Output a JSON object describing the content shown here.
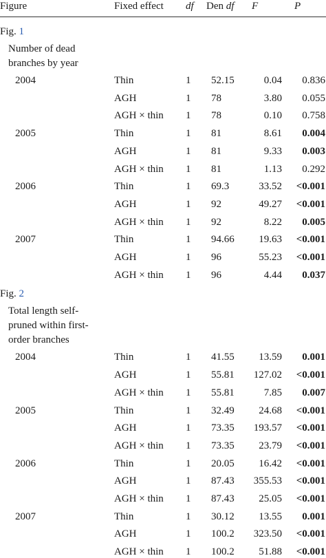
{
  "header": {
    "figure": "Figure",
    "fixed_effect": "Fixed effect",
    "df": "df",
    "den_df_prefix": "Den ",
    "den_df_italic": "df",
    "f": "F",
    "p": "P"
  },
  "sections": [
    {
      "fig_prefix": "Fig. ",
      "fig_num": "1",
      "title_lines": [
        "Number of dead",
        "branches by year"
      ],
      "years": [
        {
          "year": "2004",
          "rows": [
            {
              "effect": "Thin",
              "df": "1",
              "den": "52.15",
              "f": "0.04",
              "p": "0.836",
              "bold": false
            },
            {
              "effect": "AGH",
              "df": "1",
              "den": "78",
              "f": "3.80",
              "p": "0.055",
              "bold": false
            },
            {
              "effect": "AGH × thin",
              "df": "1",
              "den": "78",
              "f": "0.10",
              "p": "0.758",
              "bold": false
            }
          ]
        },
        {
          "year": "2005",
          "rows": [
            {
              "effect": "Thin",
              "df": "1",
              "den": "81",
              "f": "8.61",
              "p": "0.004",
              "bold": true
            },
            {
              "effect": "AGH",
              "df": "1",
              "den": "81",
              "f": "9.33",
              "p": "0.003",
              "bold": true
            },
            {
              "effect": "AGH × thin",
              "df": "1",
              "den": "81",
              "f": "1.13",
              "p": "0.292",
              "bold": false
            }
          ]
        },
        {
          "year": "2006",
          "rows": [
            {
              "effect": "Thin",
              "df": "1",
              "den": "69.3",
              "f": "33.52",
              "p": "<0.001",
              "bold": true
            },
            {
              "effect": "AGH",
              "df": "1",
              "den": "92",
              "f": "49.27",
              "p": "<0.001",
              "bold": true
            },
            {
              "effect": "AGH × thin",
              "df": "1",
              "den": "92",
              "f": "8.22",
              "p": "0.005",
              "bold": true
            }
          ]
        },
        {
          "year": "2007",
          "rows": [
            {
              "effect": "Thin",
              "df": "1",
              "den": "94.66",
              "f": "19.63",
              "p": "<0.001",
              "bold": true
            },
            {
              "effect": "AGH",
              "df": "1",
              "den": "96",
              "f": "55.23",
              "p": "<0.001",
              "bold": true
            },
            {
              "effect": "AGH × thin",
              "df": "1",
              "den": "96",
              "f": "4.44",
              "p": "0.037",
              "bold": true
            }
          ]
        }
      ]
    },
    {
      "fig_prefix": "Fig. ",
      "fig_num": "2",
      "title_lines": [
        "Total length self-",
        "pruned within first-",
        "order branches"
      ],
      "years": [
        {
          "year": "2004",
          "rows": [
            {
              "effect": "Thin",
              "df": "1",
              "den": "41.55",
              "f": "13.59",
              "p": "0.001",
              "bold": true
            },
            {
              "effect": "AGH",
              "df": "1",
              "den": "55.81",
              "f": "127.02",
              "p": "<0.001",
              "bold": true
            },
            {
              "effect": "AGH × thin",
              "df": "1",
              "den": "55.81",
              "f": "7.85",
              "p": "0.007",
              "bold": true
            }
          ]
        },
        {
          "year": "2005",
          "rows": [
            {
              "effect": "Thin",
              "df": "1",
              "den": "32.49",
              "f": "24.68",
              "p": "<0.001",
              "bold": true
            },
            {
              "effect": "AGH",
              "df": "1",
              "den": "73.35",
              "f": "193.57",
              "p": "<0.001",
              "bold": true
            },
            {
              "effect": "AGH × thin",
              "df": "1",
              "den": "73.35",
              "f": "23.79",
              "p": "<0.001",
              "bold": true
            }
          ]
        },
        {
          "year": "2006",
          "rows": [
            {
              "effect": "Thin",
              "df": "1",
              "den": "20.05",
              "f": "16.42",
              "p": "<0.001",
              "bold": true
            },
            {
              "effect": "AGH",
              "df": "1",
              "den": "87.43",
              "f": "355.53",
              "p": "<0.001",
              "bold": true
            },
            {
              "effect": "AGH × thin",
              "df": "1",
              "den": "87.43",
              "f": "25.05",
              "p": "<0.001",
              "bold": true
            }
          ]
        },
        {
          "year": "2007",
          "rows": [
            {
              "effect": "Thin",
              "df": "1",
              "den": "30.12",
              "f": "13.55",
              "p": "0.001",
              "bold": true
            },
            {
              "effect": "AGH",
              "df": "1",
              "den": "100.2",
              "f": "323.50",
              "p": "<0.001",
              "bold": true
            },
            {
              "effect": "AGH × thin",
              "df": "1",
              "den": "100.2",
              "f": "51.88",
              "p": "<0.001",
              "bold": true
            }
          ]
        }
      ]
    }
  ],
  "colors": {
    "text": "#1a1a1a",
    "link": "#2a5db0",
    "rule": "#333333"
  }
}
